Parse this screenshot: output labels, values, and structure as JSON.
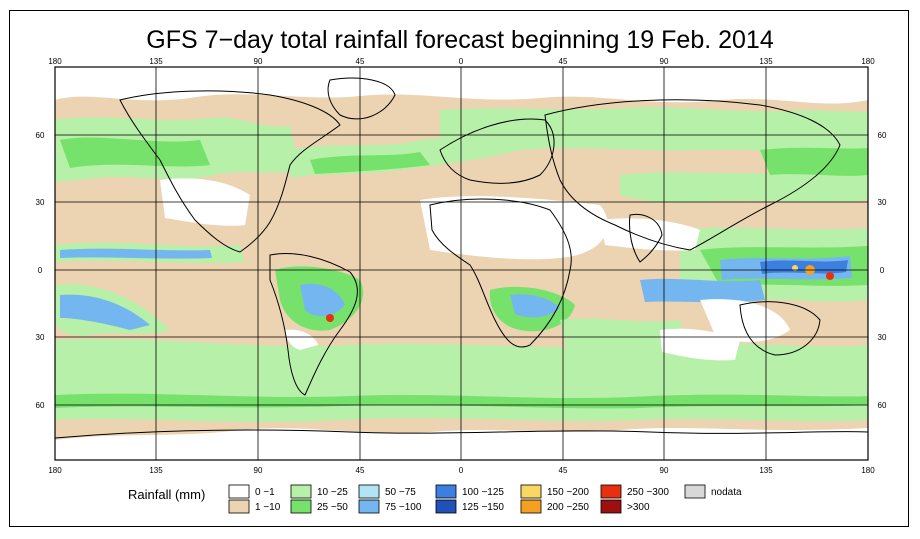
{
  "title": "GFS 7−day total rainfall forecast beginning 19 Feb. 2014",
  "axes": {
    "lon_labels": [
      "180",
      "135",
      "90",
      "45",
      "0",
      "45",
      "90",
      "135",
      "180"
    ],
    "lat_labels": [
      "60",
      "30",
      "0",
      "30",
      "60"
    ]
  },
  "legend": {
    "title": "Rainfall (mm)",
    "items": [
      {
        "label": "0 −1",
        "color": "#ffffff"
      },
      {
        "label": "1 −10",
        "color": "#ecd3b1"
      },
      {
        "label": "10 −25",
        "color": "#b7f0a8"
      },
      {
        "label": "25 −50",
        "color": "#77e26b"
      },
      {
        "label": "50 −75",
        "color": "#b1e4f5"
      },
      {
        "label": "75 −100",
        "color": "#74b6ef"
      },
      {
        "label": "100 −125",
        "color": "#3c7fe0"
      },
      {
        "label": "125 −150",
        "color": "#2050b8"
      },
      {
        "label": "150 −200",
        "color": "#f8d860"
      },
      {
        "label": "200 −250",
        "color": "#f5a020"
      },
      {
        "label": "250 −300",
        "color": "#e83010"
      },
      {
        "label": ">300",
        "color": "#9e1010"
      },
      {
        "label": "nodata",
        "color": "#d8d8d8"
      }
    ]
  }
}
